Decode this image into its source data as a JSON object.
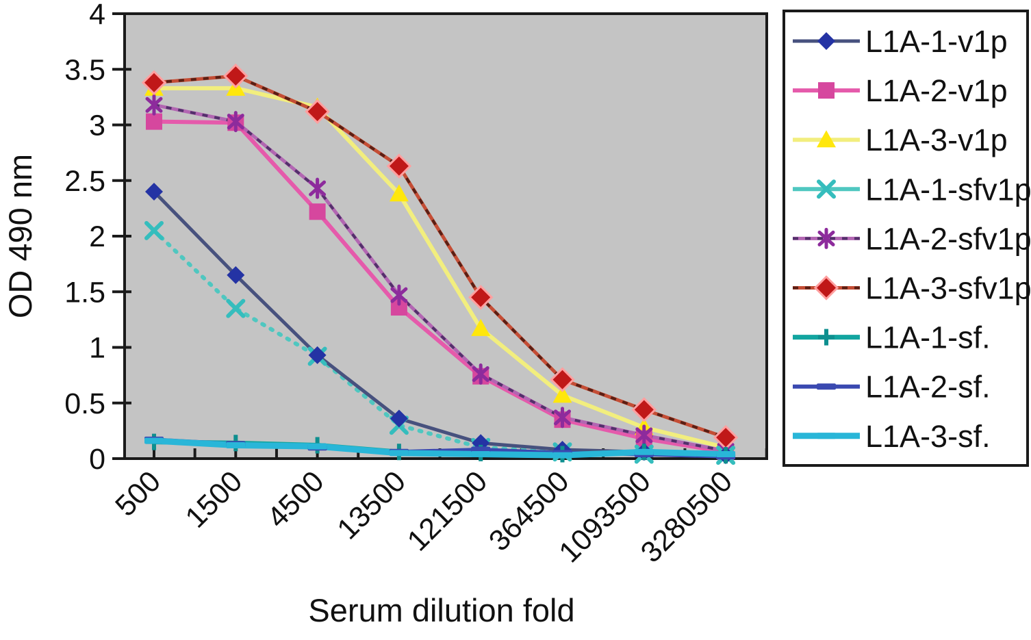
{
  "figure": {
    "background": "#ffffff",
    "axis_color": "#1a1a1a",
    "text_color": "#111111"
  },
  "chart_data": {
    "type": "line",
    "title": "",
    "xlabel": "Serum dilution fold",
    "ylabel": "OD 490 nm",
    "categories": [
      "500",
      "1500",
      "4500",
      "13500",
      "121500",
      "364500",
      "1093500",
      "3280500"
    ],
    "ylim": [
      0,
      4
    ],
    "yticks": [
      "0",
      "0.5",
      "1",
      "1.5",
      "2",
      "2.5",
      "3",
      "3.5",
      "4"
    ],
    "grid": false,
    "legend_position": "right",
    "plot_background": "#c4c4c4",
    "legend_background": "#ffffff",
    "series": [
      {
        "name": "L1A-1-v1p",
        "marker": "diamond",
        "color": "#47517e",
        "marker_color": "#2433a4",
        "line_style": "solid",
        "line_width": 5,
        "values": [
          2.4,
          1.65,
          0.93,
          0.36,
          0.14,
          0.08,
          0.06,
          0.03
        ]
      },
      {
        "name": "L1A-2-v1p",
        "marker": "square",
        "color": "#e55aab",
        "marker_color": "#d6479e",
        "line_style": "solid",
        "line_width": 6,
        "values": [
          3.03,
          3.02,
          2.22,
          1.36,
          0.74,
          0.35,
          0.18,
          0.06
        ]
      },
      {
        "name": "L1A-3-v1p",
        "marker": "triangle",
        "color": "#f2ee7e",
        "marker_color": "#ffe70c",
        "line_style": "solid",
        "line_width": 6,
        "values": [
          3.33,
          3.33,
          3.16,
          2.38,
          1.17,
          0.57,
          0.28,
          0.1
        ]
      },
      {
        "name": "L1A-1-sfv1p",
        "marker": "x",
        "color": "#4fc7c0",
        "marker_color": "#35bdbd",
        "line_style": "dotted",
        "line_width": 6,
        "values": [
          2.05,
          1.35,
          0.92,
          0.3,
          0.1,
          0.06,
          0.04,
          0.03
        ]
      },
      {
        "name": "L1A-2-sfv1p",
        "marker": "asterisk",
        "color": "#b266b2",
        "marker_color": "#8d2b9c",
        "line_style": "solid",
        "line_width": 5,
        "dash_color": "#53306b",
        "values": [
          3.18,
          3.03,
          2.43,
          1.47,
          0.76,
          0.37,
          0.21,
          0.07
        ]
      },
      {
        "name": "L1A-3-sfv1p",
        "marker": "diamond-halo",
        "color": "#c44d35",
        "marker_color": "#c01818",
        "halo_color": "#ff9f9f",
        "line_style": "solid",
        "line_width": 5,
        "dash_color": "#5a1f14",
        "values": [
          3.38,
          3.44,
          3.12,
          2.63,
          1.45,
          0.71,
          0.44,
          0.19
        ]
      },
      {
        "name": "L1A-1-sf.",
        "marker": "plus",
        "color": "#12a5a0",
        "marker_color": "#0e8f8f",
        "line_style": "solid",
        "line_width": 7,
        "values": [
          0.15,
          0.14,
          0.12,
          0.06,
          0.05,
          0.04,
          0.06,
          0.03
        ]
      },
      {
        "name": "L1A-2-sf.",
        "marker": "hdash",
        "color": "#3a49b0",
        "marker_color": "#3a49b0",
        "line_style": "solid",
        "line_width": 6,
        "values": [
          0.17,
          0.13,
          0.1,
          0.06,
          0.08,
          0.05,
          0.04,
          0.02
        ]
      },
      {
        "name": "L1A-3-sf.",
        "marker": "hdash",
        "color": "#29b6d8",
        "marker_color": "#29b6d8",
        "line_style": "solid",
        "line_width": 9,
        "values": [
          0.16,
          0.12,
          0.11,
          0.05,
          0.04,
          0.03,
          0.06,
          0.04
        ]
      }
    ]
  }
}
